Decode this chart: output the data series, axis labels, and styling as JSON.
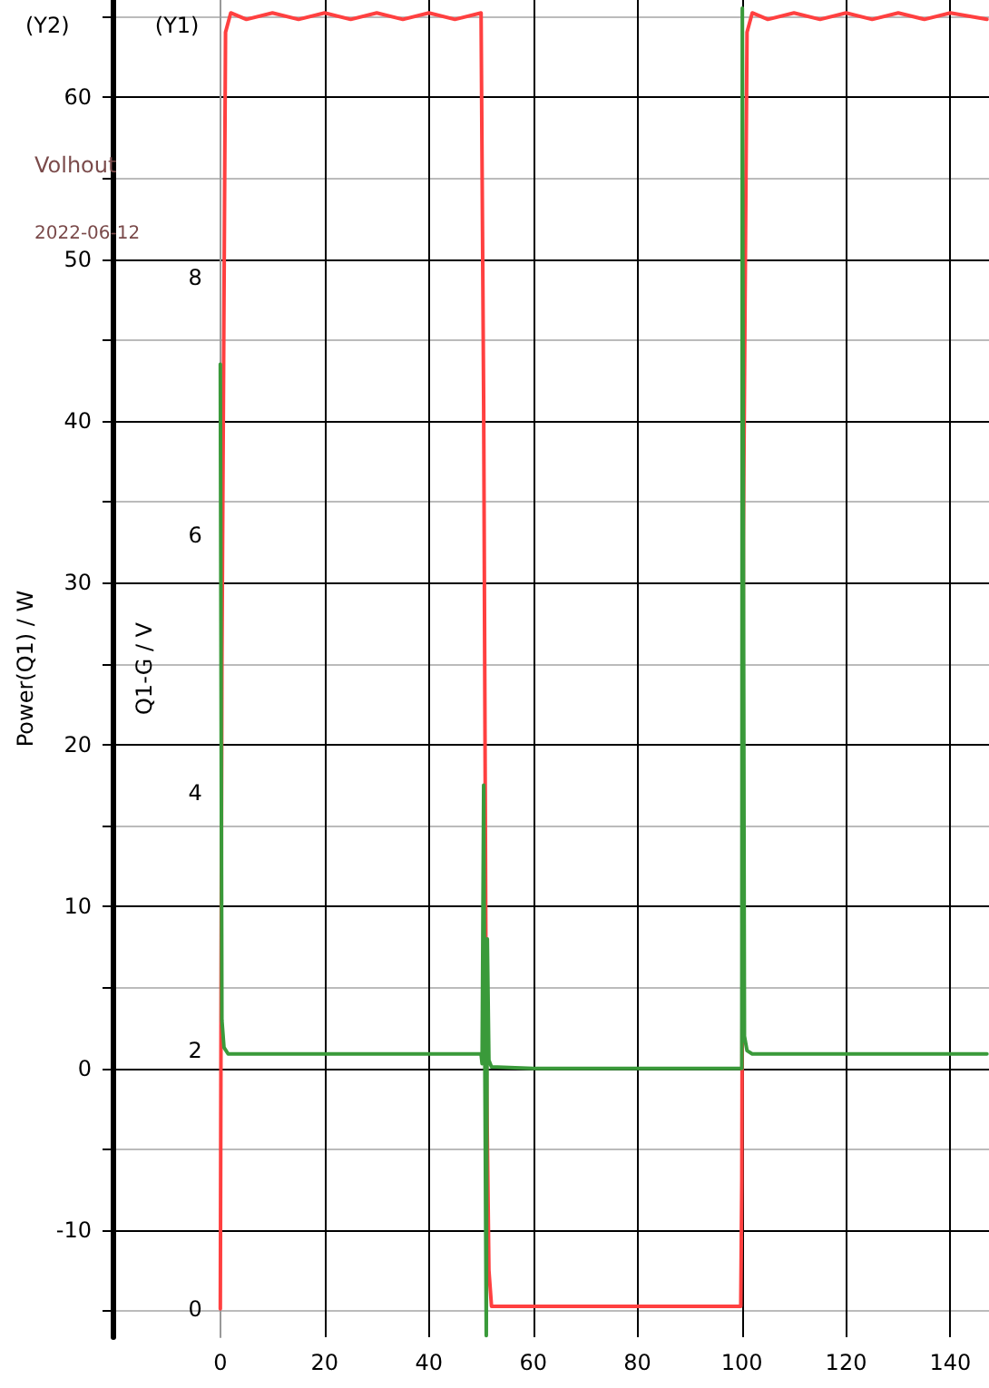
{
  "chart_data": {
    "type": "line",
    "ylabel": "Q1-G / V",
    "y2label": "Power(Q1) / W",
    "annotations": [
      "(Y2)",
      "(Y1)",
      "Volhout",
      "2022-06-12"
    ],
    "xlim": [
      -20.5,
      147.4
    ],
    "xticks": [
      0,
      20,
      40,
      60,
      80,
      100,
      120,
      140
    ],
    "ylim": [
      -0.22,
      10.15
    ],
    "yticks": [
      0,
      2,
      4,
      6,
      8
    ],
    "y2lim": [
      -16.6,
      66
    ],
    "y2ticks": [
      {
        "value": -15,
        "label": null
      },
      -10,
      {
        "value": -5,
        "label": null
      },
      0,
      {
        "value": 5,
        "label": null
      },
      10,
      {
        "value": 15,
        "label": null
      },
      20,
      {
        "value": 25,
        "label": null
      },
      30,
      {
        "value": 35,
        "label": null
      },
      40,
      {
        "value": 45,
        "label": null
      },
      50,
      {
        "value": 55,
        "label": null
      },
      60,
      {
        "value": 65,
        "label": null
      }
    ],
    "grid": true,
    "marker": "none",
    "line_style": "solid",
    "series": [
      {
        "color": "#ff4040",
        "x": [
          0,
          0.3,
          1,
          2,
          5,
          10,
          15,
          20,
          25,
          30,
          35,
          40,
          45,
          50,
          50.5,
          51,
          51.5,
          52,
          60,
          70,
          80,
          90,
          99.8,
          100,
          100.3,
          101,
          102,
          105,
          110,
          115,
          120,
          125,
          130,
          135,
          140,
          147
        ],
        "values": [
          0,
          5,
          9.9,
          10.05,
          10.0,
          10.05,
          10.0,
          10.05,
          10.0,
          10.05,
          10.0,
          10.05,
          10.0,
          10.05,
          7,
          2,
          0.3,
          0.02,
          0.02,
          0.02,
          0.02,
          0.02,
          0.02,
          1,
          6,
          9.9,
          10.05,
          10.0,
          10.05,
          10.0,
          10.05,
          10.0,
          10.05,
          10.0,
          10.05,
          10.0
        ]
      },
      {
        "color": "#3a9a3a",
        "axis": "y2",
        "x": [
          0,
          0.3,
          0.7,
          1.5,
          10,
          20,
          30,
          40,
          50,
          50.2,
          50.5,
          50.7,
          51,
          51.2,
          51.5,
          52,
          60,
          70,
          80,
          90,
          100,
          100.1,
          100.5,
          101,
          102,
          110,
          120,
          130,
          140,
          147
        ],
        "values": [
          43.5,
          3,
          1.3,
          0.9,
          0.9,
          0.9,
          0.9,
          0.9,
          0.9,
          0.3,
          17.5,
          2,
          -16.5,
          8,
          0.5,
          0.1,
          0,
          0,
          0,
          0,
          0,
          65.5,
          2,
          1.1,
          0.9,
          0.9,
          0.9,
          0.9,
          0.9,
          0.9
        ]
      }
    ]
  }
}
